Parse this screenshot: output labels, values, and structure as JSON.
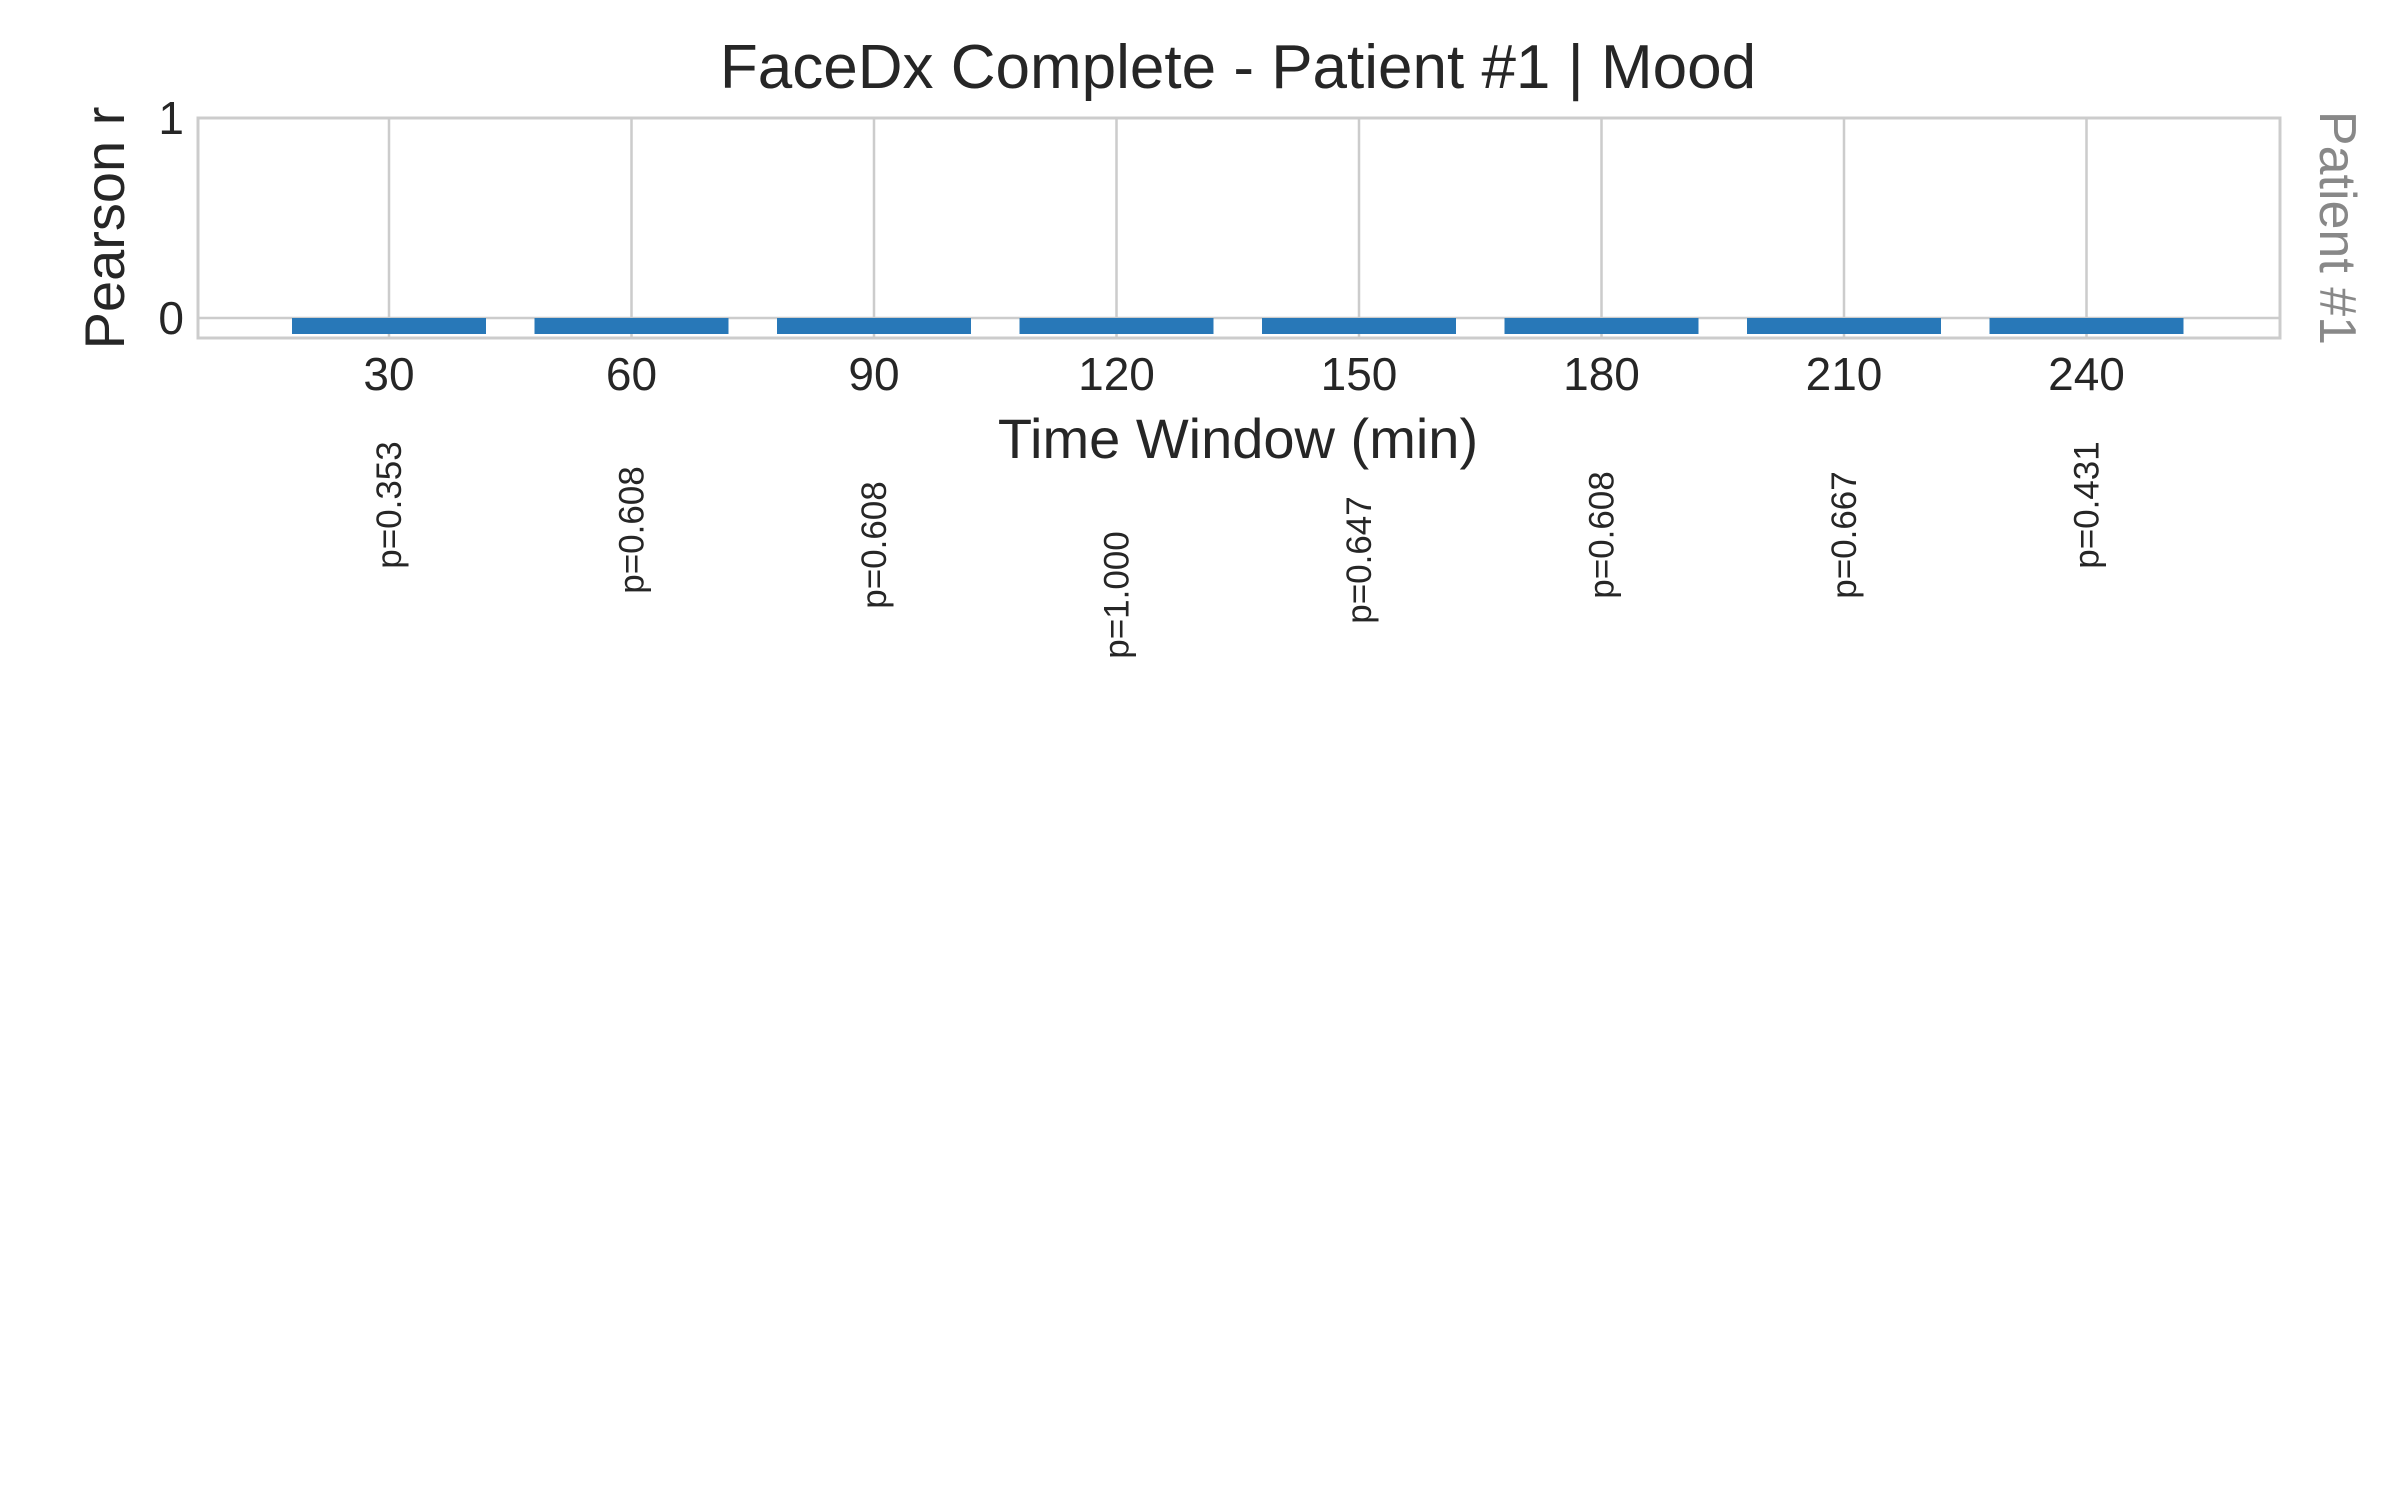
{
  "chart_data": {
    "type": "bar",
    "title": "FaceDx Complete - Patient #1 | Mood",
    "xlabel": "Time Window (min)",
    "ylabel": "Pearson r",
    "side_label": "Patient #1",
    "categories": [
      "30",
      "60",
      "90",
      "120",
      "150",
      "180",
      "210",
      "240"
    ],
    "values": [
      0,
      0,
      0,
      0,
      0,
      0,
      0,
      0
    ],
    "p_values": [
      "p=0.353",
      "p=0.608",
      "p=0.608",
      "p=1.000",
      "p=0.647",
      "p=0.608",
      "p=0.667",
      "p=0.431"
    ],
    "y_ticks": [
      "0",
      "1"
    ],
    "ylim": [
      -0.1,
      1.0
    ],
    "grid": true,
    "legend": "none",
    "colors": {
      "bar": "#2878b8",
      "grid": "#cccccc",
      "frame": "#cccccc"
    }
  }
}
